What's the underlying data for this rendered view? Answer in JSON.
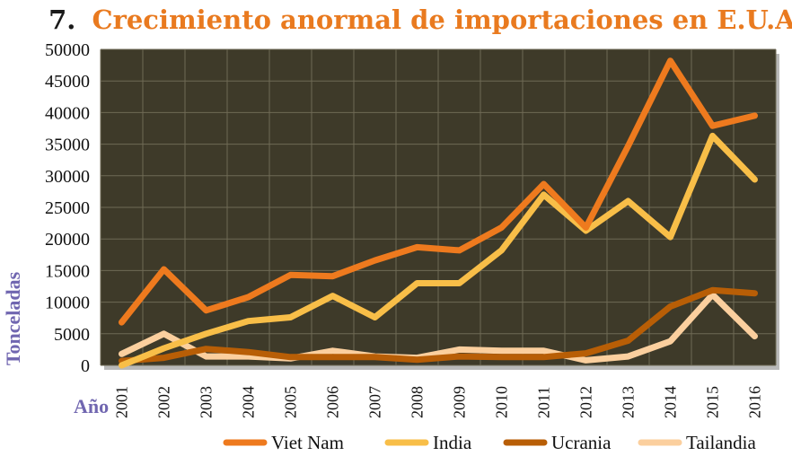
{
  "chart_data": {
    "type": "line",
    "title_number": "7.",
    "title_text": "Crecimiento anormal de importaciones en E.U.A.",
    "ylabel": "Tonceladas",
    "xlabel": "Año",
    "categories": [
      "2001",
      "2002",
      "2003",
      "2004",
      "2005",
      "2006",
      "2007",
      "2008",
      "2009",
      "2010",
      "2011",
      "2012",
      "2013",
      "2014",
      "2015",
      "2016"
    ],
    "yticks": [
      "0",
      "5000",
      "10000",
      "15000",
      "20000",
      "25000",
      "30000",
      "35000",
      "40000",
      "45000",
      "50000"
    ],
    "ylim": [
      0,
      50000
    ],
    "grid": true,
    "legend_position": "bottom",
    "background_color": "#3e3a29",
    "grid_color": "#6f6a55",
    "title_number_color": "#1a1a1a",
    "title_text_color": "#e97a1f",
    "series": [
      {
        "name": "Viet Nam",
        "color": "#ee7a1e",
        "values": [
          6800,
          15200,
          8700,
          10800,
          14300,
          14100,
          16600,
          18700,
          18200,
          21800,
          28700,
          21800,
          34700,
          48200,
          37900,
          39500
        ]
      },
      {
        "name": "India",
        "color": "#f8be48",
        "values": [
          0,
          2700,
          5000,
          7000,
          7600,
          11000,
          7600,
          13000,
          13000,
          18200,
          27000,
          21300,
          26000,
          20300,
          36300,
          29400
        ]
      },
      {
        "name": "Ucrania",
        "color": "#b85e06",
        "values": [
          700,
          1200,
          2600,
          2100,
          1300,
          1300,
          1300,
          900,
          1400,
          1300,
          1300,
          1900,
          3900,
          9300,
          11900,
          11400
        ]
      },
      {
        "name": "Tailandia",
        "color": "#fbcf9e",
        "values": [
          1800,
          5000,
          1400,
          1400,
          1100,
          2300,
          1400,
          1200,
          2500,
          2300,
          2300,
          800,
          1400,
          3800,
          11200,
          4600
        ]
      }
    ]
  }
}
